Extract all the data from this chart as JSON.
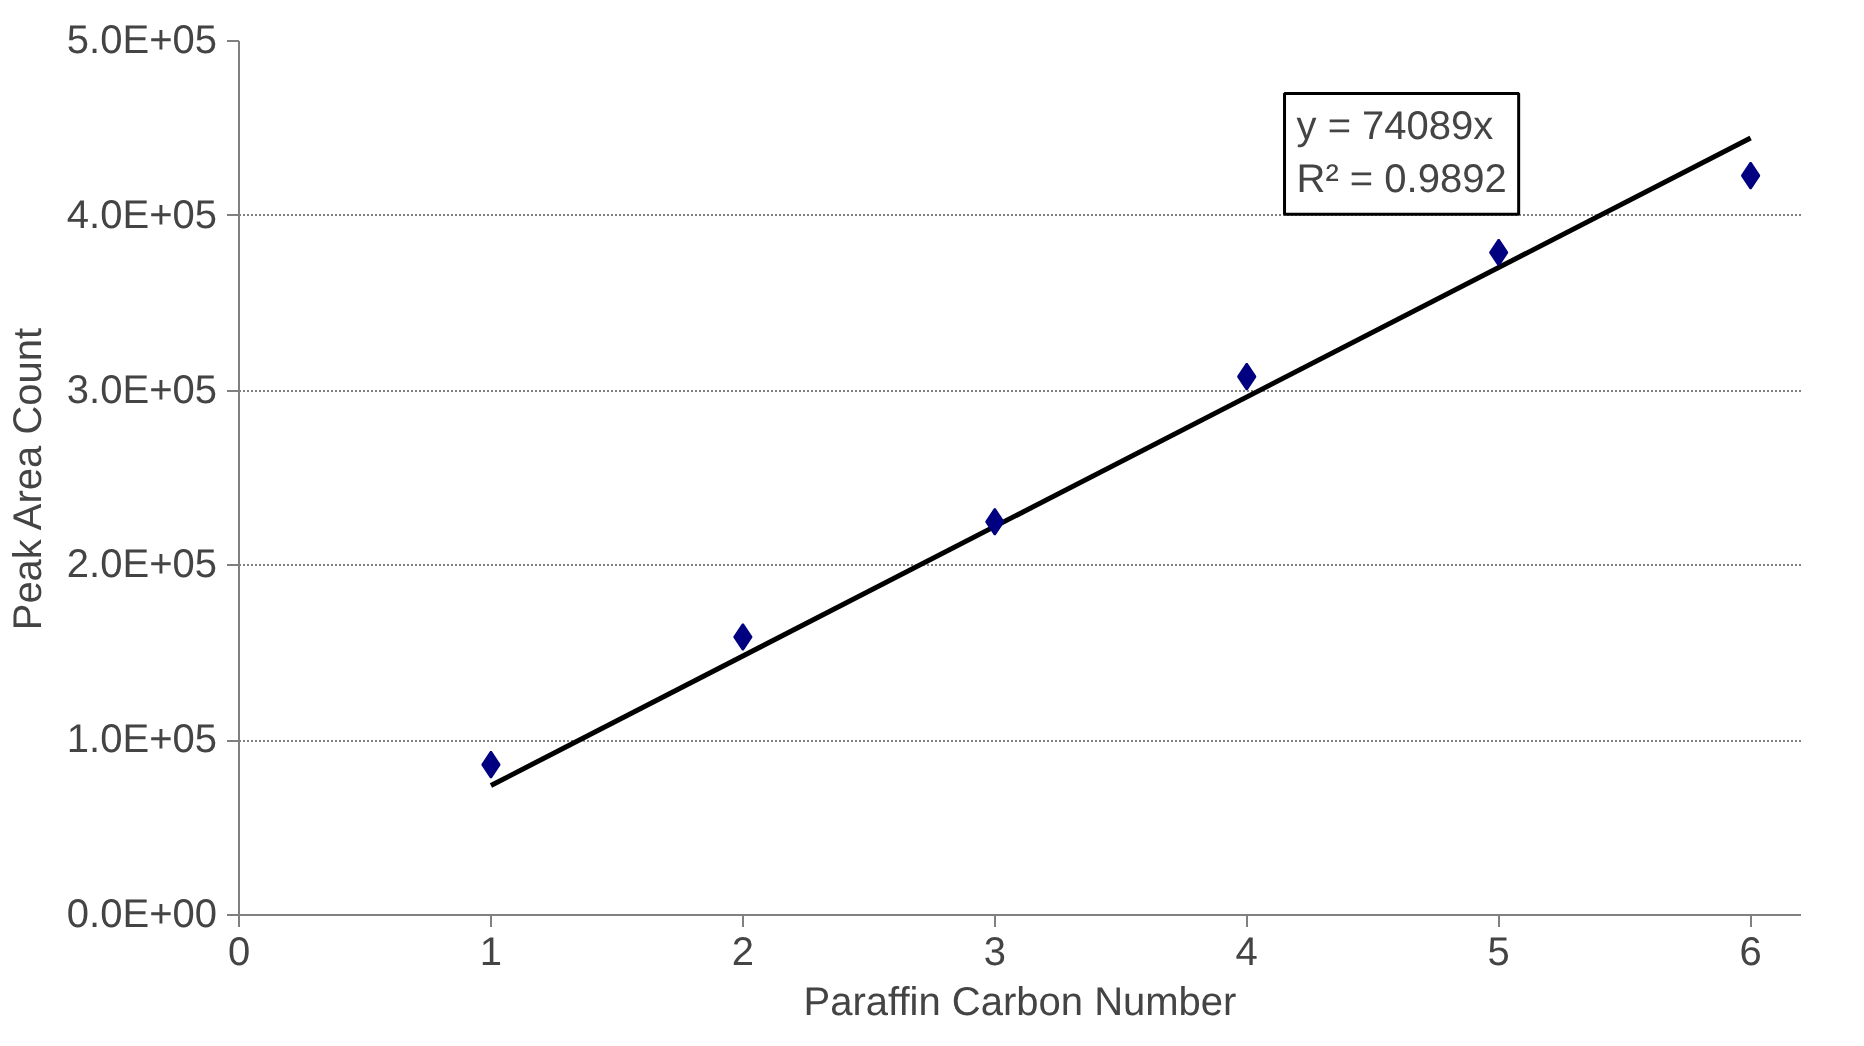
{
  "chart_data": {
    "type": "scatter",
    "xlabel": "Paraffin Carbon Number",
    "ylabel": "Peak Area Count",
    "x": [
      1,
      2,
      3,
      4,
      5,
      6
    ],
    "series": [
      {
        "color": "#000080",
        "values": [
          86000,
          159000,
          225000,
          308000,
          379000,
          423000
        ],
        "marker": "diamond"
      },
      {
        "type": "line",
        "color": "#000000",
        "x": [
          1,
          6
        ],
        "values": [
          74089,
          444534
        ],
        "marker": "none",
        "line_style": "solid"
      }
    ],
    "xlim": [
      0,
      6.2
    ],
    "xticks": [
      0,
      1,
      2,
      3,
      4,
      5,
      6
    ],
    "ylim": [
      0,
      500000
    ],
    "yticks": [
      {
        "value": 0,
        "label": "0.0E+00"
      },
      {
        "value": 100000,
        "label": "1.0E+05"
      },
      {
        "value": 200000,
        "label": "2.0E+05"
      },
      {
        "value": 300000,
        "label": "3.0E+05"
      },
      {
        "value": 400000,
        "label": "4.0E+05"
      },
      {
        "value": 500000,
        "label": "5.0E+05"
      }
    ],
    "grid": "y",
    "annotations": [
      "y = 74089x",
      "R² = 0.9892"
    ]
  }
}
